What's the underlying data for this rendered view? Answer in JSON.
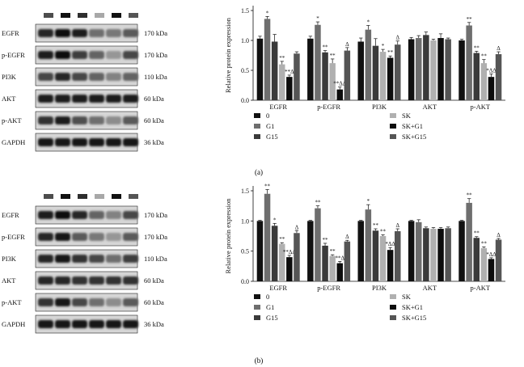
{
  "panels": [
    {
      "label": "(a)",
      "blot_rows": [
        {
          "name": "EGFR",
          "kda": "170 kDa"
        },
        {
          "name": "p-EGFR",
          "kda": "170 kDa"
        },
        {
          "name": "PI3K",
          "kda": "110 kDa"
        },
        {
          "name": "AKT",
          "kda": "60 kDa"
        },
        {
          "name": "p-AKT",
          "kda": "60 kDa"
        },
        {
          "name": "GAPDH",
          "kda": "36 kDa"
        }
      ]
    },
    {
      "label": "(b)",
      "blot_rows": [
        {
          "name": "EGFR",
          "kda": "170 kDa"
        },
        {
          "name": "p-EGFR",
          "kda": "170 kDa"
        },
        {
          "name": "PI3K",
          "kda": "110 kDa"
        },
        {
          "name": "AKT",
          "kda": "60 kDa"
        },
        {
          "name": "p-AKT",
          "kda": "60 kDa"
        },
        {
          "name": "GAPDH",
          "kda": "36 kDa"
        }
      ]
    }
  ],
  "colors": {
    "lanes": [
      "#4d4d4d",
      "#111111",
      "#2e2e2e",
      "#a8a8a8",
      "#111111",
      "#555555"
    ]
  },
  "chart_data": [
    {
      "type": "bar",
      "panel": "(a)",
      "ylabel": "Relative protein expression",
      "ylim": [
        0,
        1.5
      ],
      "yticks": [
        "0.0",
        "0.5",
        "1.0",
        "1.5"
      ],
      "categories": [
        "EGFR",
        "p-EGFR",
        "PI3K",
        "AKT",
        "p-AKT"
      ],
      "series": [
        {
          "name": "0",
          "color": "#111111",
          "values": [
            1.03,
            1.03,
            0.98,
            1.02,
            1.0
          ],
          "errors": [
            0.04,
            0.04,
            0.06,
            0.03,
            0.02
          ],
          "marks": [
            "",
            "",
            "",
            "",
            ""
          ]
        },
        {
          "name": "G1",
          "color": "#6e6e6e",
          "values": [
            1.36,
            1.26,
            1.18,
            1.04,
            1.25
          ],
          "errors": [
            0.04,
            0.05,
            0.07,
            0.04,
            0.05
          ],
          "marks": [
            "*",
            "*",
            "*",
            "",
            "**"
          ]
        },
        {
          "name": "G15",
          "color": "#3a3a3a",
          "values": [
            0.98,
            0.8,
            0.91,
            1.09,
            0.79
          ],
          "errors": [
            0.12,
            0.03,
            0.12,
            0.05,
            0.03
          ],
          "marks": [
            "",
            "**",
            "",
            "",
            "**"
          ]
        },
        {
          "name": "SK",
          "color": "#b0b0b0",
          "values": [
            0.6,
            0.62,
            0.81,
            1.0,
            0.62
          ],
          "errors": [
            0.05,
            0.07,
            0.04,
            0.02,
            0.06
          ],
          "marks": [
            "**",
            "**",
            "*",
            "",
            "**"
          ]
        },
        {
          "name": "SK+G1",
          "color": "#0d0d0d",
          "values": [
            0.39,
            0.18,
            0.71,
            1.04,
            0.39
          ],
          "errors": [
            0.03,
            0.04,
            0.03,
            0.07,
            0.05
          ],
          "marks": [
            "**Δ",
            "**ΔΔ",
            "**",
            "",
            "*ΔΔ"
          ]
        },
        {
          "name": "SK+G15",
          "color": "#555555",
          "values": [
            0.78,
            0.83,
            0.93,
            1.02,
            0.77
          ],
          "errors": [
            0.03,
            0.05,
            0.06,
            0.02,
            0.04
          ],
          "marks": [
            "",
            "Δ",
            "Δ",
            "",
            "Δ"
          ]
        }
      ]
    },
    {
      "type": "bar",
      "panel": "(b)",
      "ylabel": "Relative protein expression",
      "ylim": [
        0,
        1.5
      ],
      "yticks": [
        "0.0",
        "0.5",
        "1.0",
        "1.5"
      ],
      "categories": [
        "EGFR",
        "p-EGFR",
        "PI3K",
        "AKT",
        "p-AKT"
      ],
      "series": [
        {
          "name": "0",
          "color": "#111111",
          "values": [
            1.0,
            1.0,
            1.0,
            1.0,
            1.0
          ],
          "errors": [
            0.01,
            0.01,
            0.01,
            0.01,
            0.01
          ],
          "marks": [
            "",
            "",
            "",
            "",
            ""
          ]
        },
        {
          "name": "G1",
          "color": "#6e6e6e",
          "values": [
            1.45,
            1.21,
            1.19,
            0.98,
            1.3
          ],
          "errors": [
            0.07,
            0.04,
            0.08,
            0.04,
            0.07
          ],
          "marks": [
            "**",
            "**",
            "*",
            "",
            "**"
          ]
        },
        {
          "name": "G15",
          "color": "#3a3a3a",
          "values": [
            0.92,
            0.59,
            0.84,
            0.88,
            0.72
          ],
          "errors": [
            0.04,
            0.04,
            0.03,
            0.02,
            0.02
          ],
          "marks": [
            "*",
            "**",
            "**",
            "",
            "**"
          ]
        },
        {
          "name": "SK",
          "color": "#b0b0b0",
          "values": [
            0.62,
            0.42,
            0.75,
            0.87,
            0.55
          ],
          "errors": [
            0.02,
            0.02,
            0.02,
            0.02,
            0.02
          ],
          "marks": [
            "**",
            "**",
            "**",
            "",
            "**"
          ]
        },
        {
          "name": "SK+G1",
          "color": "#0d0d0d",
          "values": [
            0.4,
            0.3,
            0.52,
            0.87,
            0.37
          ],
          "errors": [
            0.03,
            0.03,
            0.04,
            0.02,
            0.02
          ],
          "marks": [
            "**ΔΔ",
            "**Δ",
            "*ΔΔ",
            "",
            "*ΔΔ"
          ]
        },
        {
          "name": "SK+G15",
          "color": "#555555",
          "values": [
            0.8,
            0.66,
            0.83,
            0.88,
            0.69
          ],
          "errors": [
            0.04,
            0.02,
            0.04,
            0.02,
            0.02
          ],
          "marks": [
            "Δ",
            "Δ",
            "Δ",
            "",
            "Δ"
          ]
        }
      ]
    }
  ]
}
